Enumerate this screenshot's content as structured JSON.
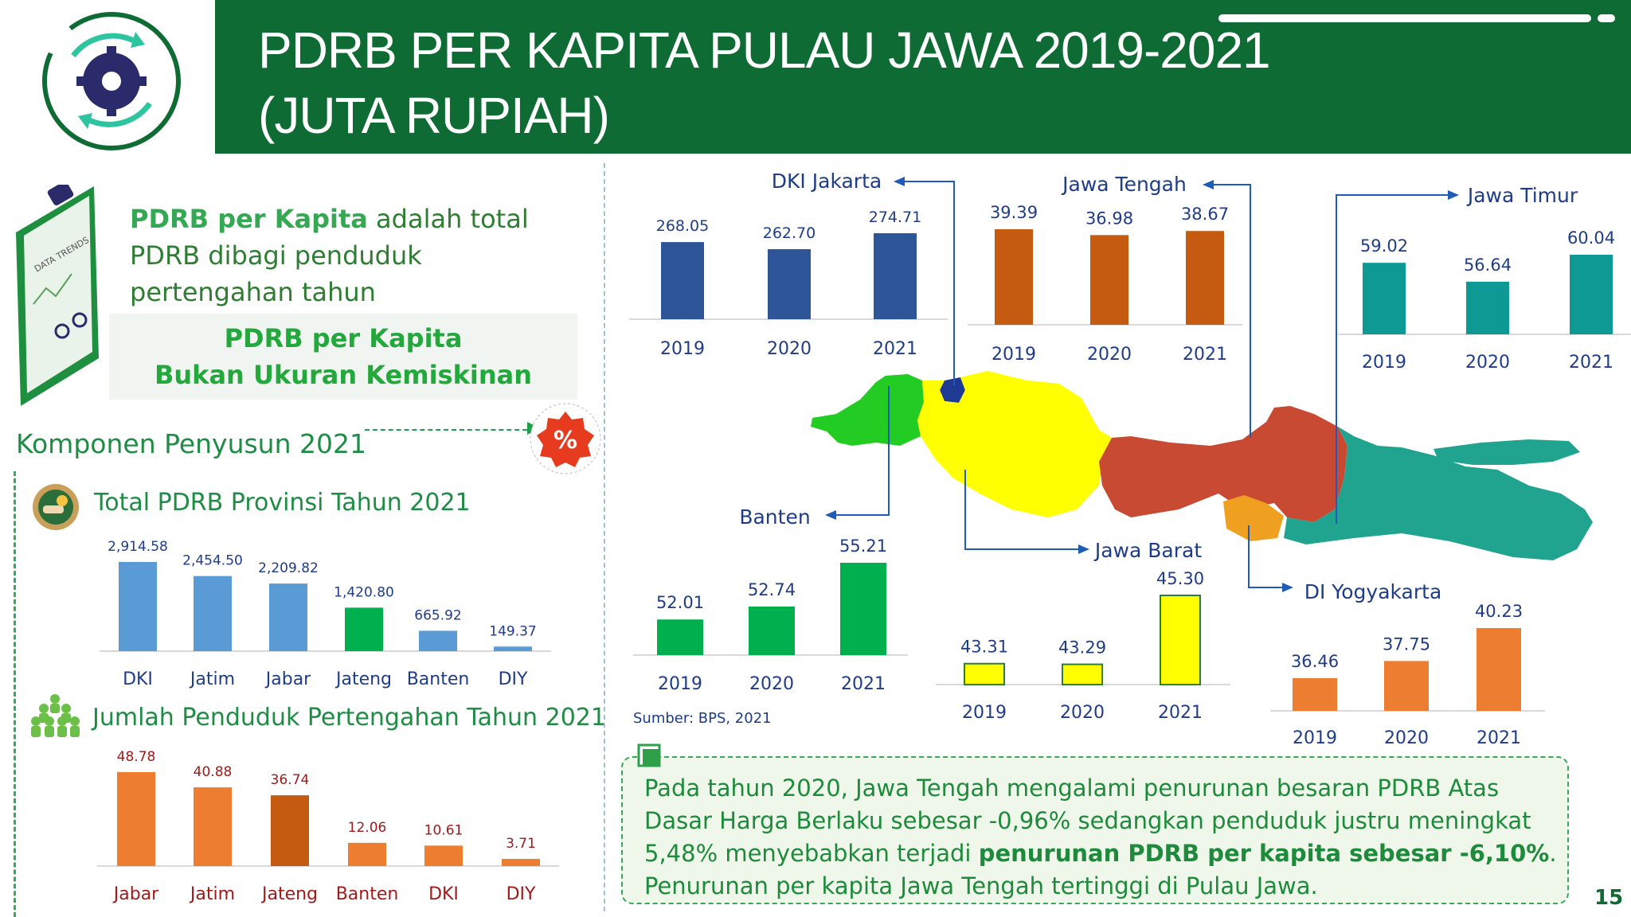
{
  "header": {
    "title": "PDRB PER KAPITA PULAU JAWA 2019-2021 (JUTA RUPIAH)"
  },
  "definition": {
    "term": "PDRB per Kapita",
    "rest": " adalah total PDRB dibagi penduduk pertengahan tahun"
  },
  "callout": {
    "line1": "PDRB per Kapita",
    "line2": "Bukan Ukuran Kemiskinan"
  },
  "komponen_title": "Komponen Penyusun 2021",
  "clipboard_text": "DATA TRENDS",
  "percent_badge": "%",
  "source": "Sumber: BPS, 2021",
  "note": {
    "part1": "Pada tahun 2020, Jawa Tengah mengalami penurunan besaran PDRB Atas Dasar Harga Berlaku sebesar -0,96% sedangkan penduduk justru meningkat 5,48% menyebabkan terjadi ",
    "bold": "penurunan PDRB per kapita sebesar -6,10%",
    "part2": ". Penurunan per kapita Jawa Tengah tertinggi di Pulau Jawa."
  },
  "page_number": "15",
  "colors": {
    "header_green": "#0e6b33",
    "dki": "#2e5597",
    "jateng": "#c55a11",
    "jatim": "#0f9994",
    "banten": "#00b04f",
    "jabar": "#ffff00",
    "diy": "#ed7d31",
    "pdrb_bar": "#5b9bd5",
    "pend_bar": "#ed7d31"
  },
  "chart_data": [
    {
      "type": "bar",
      "title": "Total PDRB Provinsi Tahun 2021",
      "categories": [
        "DKI",
        "Jatim",
        "Jabar",
        "Jateng",
        "Banten",
        "DIY"
      ],
      "values": [
        2914.58,
        2454.5,
        2209.82,
        1420.8,
        665.92,
        149.37
      ],
      "labels": [
        "2,914.58",
        "2,454.50",
        "2,209.82",
        "1,420.80",
        "665.92",
        "149.37"
      ],
      "highlight": "Jateng"
    },
    {
      "type": "bar",
      "title": "Jumlah Penduduk Pertengahan Tahun 2021",
      "categories": [
        "Jabar",
        "Jatim",
        "Jateng",
        "Banten",
        "DKI",
        "DIY"
      ],
      "values": [
        48.78,
        40.88,
        36.74,
        12.06,
        10.61,
        3.71
      ],
      "labels": [
        "48.78",
        "40.88",
        "36.74",
        "12.06",
        "10.61",
        "3.71"
      ],
      "highlight": "Jateng"
    },
    {
      "type": "bar",
      "series_name": "DKI Jakarta",
      "categories": [
        "2019",
        "2020",
        "2021"
      ],
      "values": [
        268.05,
        262.7,
        274.71
      ],
      "labels": [
        "268.05",
        "262.70",
        "274.71"
      ]
    },
    {
      "type": "bar",
      "series_name": "Jawa Tengah",
      "categories": [
        "2019",
        "2020",
        "2021"
      ],
      "values": [
        39.39,
        36.98,
        38.67
      ],
      "labels": [
        "39.39",
        "36.98",
        "38.67"
      ]
    },
    {
      "type": "bar",
      "series_name": "Jawa Timur",
      "categories": [
        "2019",
        "2020",
        "2021"
      ],
      "values": [
        59.02,
        56.64,
        60.04
      ],
      "labels": [
        "59.02",
        "56.64",
        "60.04"
      ]
    },
    {
      "type": "bar",
      "series_name": "Banten",
      "categories": [
        "2019",
        "2020",
        "2021"
      ],
      "values": [
        52.01,
        52.74,
        55.21
      ],
      "labels": [
        "52.01",
        "52.74",
        "55.21"
      ]
    },
    {
      "type": "bar",
      "series_name": "Jawa Barat",
      "categories": [
        "2019",
        "2020",
        "2021"
      ],
      "values": [
        43.31,
        43.29,
        45.3
      ],
      "labels": [
        "43.31",
        "43.29",
        "45.30"
      ]
    },
    {
      "type": "bar",
      "series_name": "DI Yogyakarta",
      "categories": [
        "2019",
        "2020",
        "2021"
      ],
      "values": [
        36.46,
        37.75,
        40.23
      ],
      "labels": [
        "36.46",
        "37.75",
        "40.23"
      ]
    }
  ]
}
